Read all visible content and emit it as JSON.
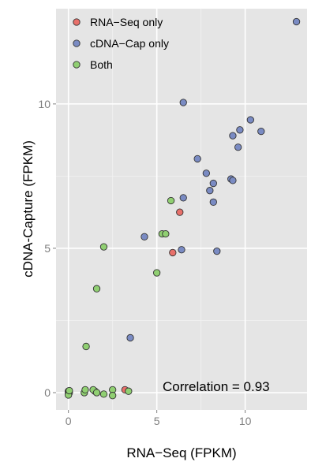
{
  "chart_data": {
    "type": "scatter",
    "title": "",
    "xlabel": "RNA−Seq (FPKM)",
    "ylabel": "cDNA-Capture (FPKM)",
    "xlim": [
      -0.7,
      13.5
    ],
    "ylim": [
      -0.6,
      13.3
    ],
    "xticks": [
      0,
      5,
      10
    ],
    "yticks": [
      0,
      5,
      10
    ],
    "grid": true,
    "legend_position": "top-left",
    "annotation": "Correlation = 0.93",
    "series": [
      {
        "name": "RNA−Seq only",
        "color": "#e8706a",
        "points": [
          [
            1.5,
            0.05
          ],
          [
            3.2,
            0.1
          ],
          [
            5.9,
            4.85
          ],
          [
            6.3,
            6.25
          ]
        ]
      },
      {
        "name": "cDNA−Cap only",
        "color": "#7a8bc3",
        "points": [
          [
            3.5,
            1.9
          ],
          [
            4.3,
            5.4
          ],
          [
            6.4,
            4.95
          ],
          [
            6.5,
            10.05
          ],
          [
            6.5,
            6.75
          ],
          [
            7.3,
            8.1
          ],
          [
            7.8,
            7.6
          ],
          [
            8.0,
            7.0
          ],
          [
            8.2,
            6.6
          ],
          [
            8.2,
            7.25
          ],
          [
            8.4,
            4.9
          ],
          [
            9.2,
            7.4
          ],
          [
            9.3,
            8.9
          ],
          [
            9.3,
            7.35
          ],
          [
            9.6,
            8.5
          ],
          [
            9.7,
            9.1
          ],
          [
            10.3,
            9.45
          ],
          [
            10.9,
            9.05
          ],
          [
            12.9,
            12.85
          ]
        ]
      },
      {
        "name": "Both",
        "color": "#90cf72",
        "points": [
          [
            0.0,
            0.05
          ],
          [
            0.0,
            -0.02
          ],
          [
            0.05,
            0.0
          ],
          [
            0.0,
            -0.08
          ],
          [
            0.05,
            0.07
          ],
          [
            0.9,
            0.0
          ],
          [
            0.95,
            0.1
          ],
          [
            1.0,
            1.6
          ],
          [
            1.4,
            0.1
          ],
          [
            1.6,
            0.0
          ],
          [
            1.6,
            3.6
          ],
          [
            2.0,
            -0.05
          ],
          [
            2.0,
            5.05
          ],
          [
            2.5,
            0.1
          ],
          [
            2.5,
            -0.1
          ],
          [
            3.4,
            0.05
          ],
          [
            5.0,
            4.15
          ],
          [
            5.3,
            5.5
          ],
          [
            5.5,
            5.5
          ],
          [
            5.8,
            6.65
          ]
        ]
      }
    ]
  }
}
